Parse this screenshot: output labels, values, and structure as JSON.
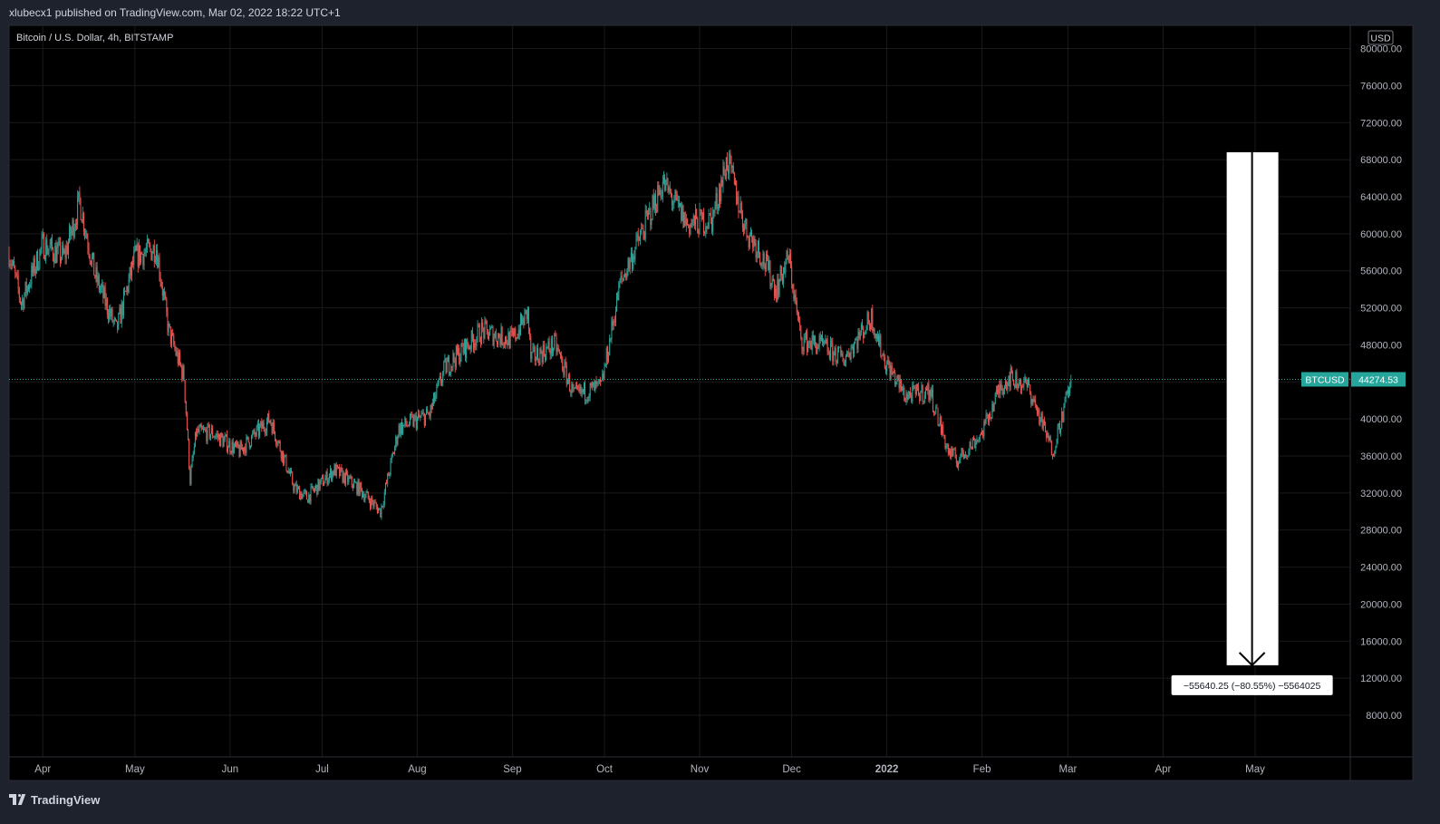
{
  "header": {
    "published": "xlubecx1 published on TradingView.com, Mar 02, 2022 18:22 UTC+1"
  },
  "footer": {
    "brand": "TradingView"
  },
  "colors": {
    "background": "#000000",
    "frame": "#1e222d",
    "grid": "#1a1a1a",
    "up": "#26a69a",
    "down": "#ef5350",
    "price_line": "#26a69a",
    "annotation": "#ffffff"
  },
  "chart_data": {
    "type": "candlestick",
    "title": "Bitcoin / U.S. Dollar, 4h, BITSTAMP",
    "symbol": "BTCUSD",
    "currency": "USD",
    "last_price": 44274.53,
    "last_price_label": "44274.53",
    "y_axis": {
      "range": [
        3500,
        82500
      ],
      "ticks": [
        8000,
        12000,
        16000,
        20000,
        24000,
        28000,
        32000,
        36000,
        40000,
        44000,
        48000,
        52000,
        56000,
        60000,
        64000,
        68000,
        72000,
        76000,
        80000
      ],
      "tick_labels": [
        "8000.00",
        "12000.00",
        "16000.00",
        "20000.00",
        "24000.00",
        "28000.00",
        "32000.00",
        "36000.00",
        "40000.00",
        "44000.00",
        "48000.00",
        "52000.00",
        "56000.00",
        "60000.00",
        "64000.00",
        "68000.00",
        "72000.00",
        "76000.00",
        "80000.00"
      ]
    },
    "x_axis": {
      "range": [
        "2021-03-21",
        "2022-06-01"
      ],
      "ticks": [
        "2021-04-01",
        "2021-05-01",
        "2021-06-01",
        "2021-07-01",
        "2021-08-01",
        "2021-09-01",
        "2021-10-01",
        "2021-11-01",
        "2021-12-01",
        "2022-01-01",
        "2022-02-01",
        "2022-03-01",
        "2022-04-01",
        "2022-05-01"
      ],
      "tick_labels": [
        "Apr",
        "May",
        "Jun",
        "Jul",
        "Aug",
        "Sep",
        "Oct",
        "Nov",
        "Dec",
        "2022",
        "Feb",
        "Mar",
        "Apr",
        "May"
      ]
    },
    "price_path": [
      [
        "2021-03-21",
        58000
      ],
      [
        "2021-03-25",
        52500
      ],
      [
        "2021-04-01",
        58800
      ],
      [
        "2021-04-08",
        57500
      ],
      [
        "2021-04-13",
        63500
      ],
      [
        "2021-04-18",
        55500
      ],
      [
        "2021-04-25",
        49500
      ],
      [
        "2021-05-01",
        57500
      ],
      [
        "2021-05-08",
        58500
      ],
      [
        "2021-05-12",
        49500
      ],
      [
        "2021-05-17",
        44500
      ],
      [
        "2021-05-19",
        33500
      ],
      [
        "2021-05-21",
        38500
      ],
      [
        "2021-05-26",
        38500
      ],
      [
        "2021-06-04",
        36500
      ],
      [
        "2021-06-14",
        40000
      ],
      [
        "2021-06-22",
        32500
      ],
      [
        "2021-06-26",
        31500
      ],
      [
        "2021-07-05",
        34500
      ],
      [
        "2021-07-13",
        32500
      ],
      [
        "2021-07-20",
        30000
      ],
      [
        "2021-07-26",
        39000
      ],
      [
        "2021-08-05",
        40500
      ],
      [
        "2021-08-10",
        45500
      ],
      [
        "2021-08-22",
        49500
      ],
      [
        "2021-09-01",
        48500
      ],
      [
        "2021-09-06",
        51500
      ],
      [
        "2021-09-07",
        46500
      ],
      [
        "2021-09-15",
        48000
      ],
      [
        "2021-09-21",
        42500
      ],
      [
        "2021-09-30",
        43500
      ],
      [
        "2021-10-06",
        54500
      ],
      [
        "2021-10-15",
        61500
      ],
      [
        "2021-10-20",
        65500
      ],
      [
        "2021-10-28",
        61000
      ],
      [
        "2021-11-05",
        61500
      ],
      [
        "2021-11-10",
        68000
      ],
      [
        "2021-11-16",
        60500
      ],
      [
        "2021-11-20",
        58500
      ],
      [
        "2021-11-26",
        54000
      ],
      [
        "2021-11-30",
        57500
      ],
      [
        "2021-12-04",
        48500
      ],
      [
        "2021-12-10",
        48000
      ],
      [
        "2021-12-18",
        46500
      ],
      [
        "2021-12-27",
        51000
      ],
      [
        "2021-12-31",
        46500
      ],
      [
        "2022-01-07",
        42500
      ],
      [
        "2022-01-15",
        43000
      ],
      [
        "2022-01-21",
        36500
      ],
      [
        "2022-01-24",
        35500
      ],
      [
        "2022-02-01",
        38500
      ],
      [
        "2022-02-07",
        43500
      ],
      [
        "2022-02-10",
        44500
      ],
      [
        "2022-02-16",
        43500
      ],
      [
        "2022-02-24",
        36500
      ],
      [
        "2022-02-28",
        41500
      ],
      [
        "2022-03-02",
        44274.53
      ]
    ],
    "annotation": {
      "type": "downward-arrow",
      "date": "2022-04-30",
      "from": 68800,
      "to": 13400,
      "label": "−55640.25 (−80.55%) −5564025"
    }
  }
}
